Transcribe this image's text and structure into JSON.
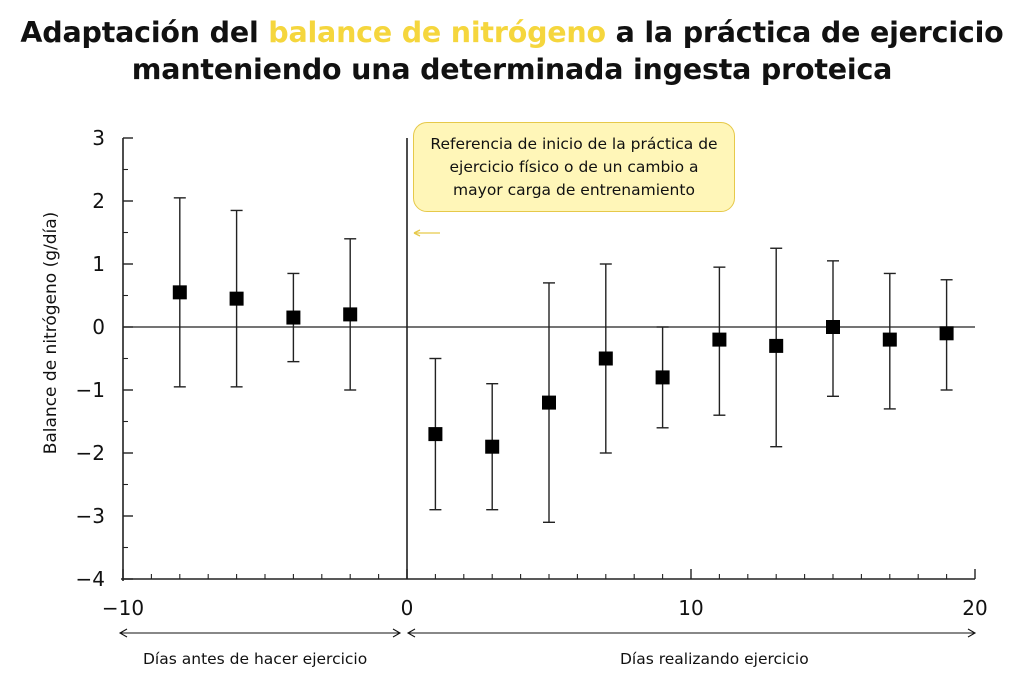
{
  "title": {
    "before": "Adaptación del ",
    "highlight": "balance de nitrógeno",
    "after_line1": " a la práctica de ejercicio",
    "line2": "manteniendo una determinada ingesta proteica"
  },
  "colors": {
    "highlight": "#f5d63d",
    "callout_bg": "#fff6b8",
    "marker": "#000000"
  },
  "annotation": "Referencia de inicio de la práctica de ejercicio físico o de un cambio a mayor carga de entrenamiento",
  "phases": {
    "before": "Días antes de hacer ejercicio",
    "during": "Días realizando ejercicio"
  },
  "chart_data": {
    "type": "scatter",
    "title": "Adaptación del balance de nitrógeno a la práctica de ejercicio manteniendo una determinada ingesta proteica",
    "xlabel": "",
    "ylabel": "Balance de nitrógeno (g/día)",
    "xlim": [
      -10,
      20
    ],
    "ylim": [
      -4,
      3
    ],
    "x_ticks": [
      "−10",
      "0",
      "10",
      "20"
    ],
    "y_ticks": [
      "3",
      "2",
      "1",
      "0",
      "−1",
      "−2",
      "−3",
      "−4"
    ],
    "reference_lines": {
      "x": 0,
      "y": 0
    },
    "points": [
      {
        "x": -8,
        "y": 0.55,
        "low": -0.95,
        "high": 2.05
      },
      {
        "x": -6,
        "y": 0.45,
        "low": -0.95,
        "high": 1.85
      },
      {
        "x": -4,
        "y": 0.15,
        "low": -0.55,
        "high": 0.85
      },
      {
        "x": -2,
        "y": 0.2,
        "low": -1.0,
        "high": 1.4
      },
      {
        "x": 1,
        "y": -1.7,
        "low": -2.9,
        "high": -0.5
      },
      {
        "x": 3,
        "y": -1.9,
        "low": -2.9,
        "high": -0.9
      },
      {
        "x": 5,
        "y": -1.2,
        "low": -3.1,
        "high": 0.7
      },
      {
        "x": 7,
        "y": -0.5,
        "low": -2.0,
        "high": 1.0
      },
      {
        "x": 9,
        "y": -0.8,
        "low": -1.6,
        "high": 0.0
      },
      {
        "x": 11,
        "y": -0.2,
        "low": -1.4,
        "high": 0.95
      },
      {
        "x": 13,
        "y": -0.3,
        "low": -1.9,
        "high": 1.25
      },
      {
        "x": 15,
        "y": 0.0,
        "low": -1.1,
        "high": 1.05
      },
      {
        "x": 17,
        "y": -0.2,
        "low": -1.3,
        "high": 0.85
      },
      {
        "x": 19,
        "y": -0.1,
        "low": -1.0,
        "high": 0.75
      }
    ]
  }
}
